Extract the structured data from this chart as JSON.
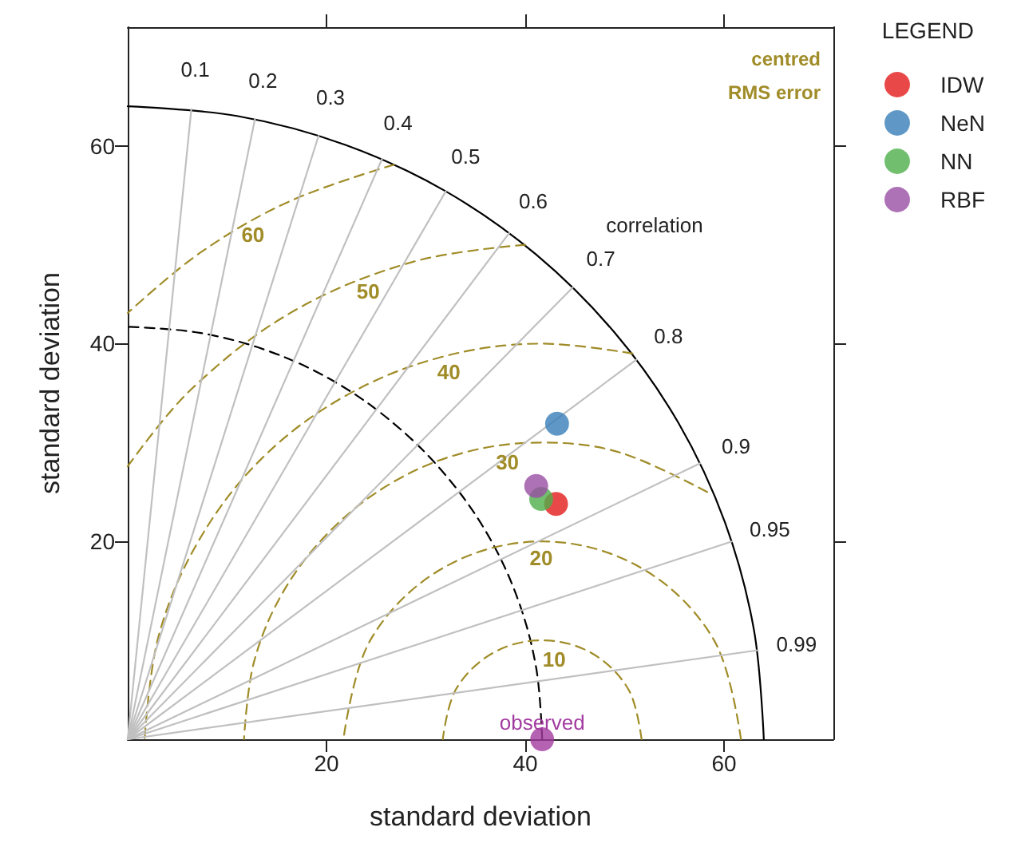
{
  "chart_data": {
    "type": "scatter",
    "xlabel": "standard deviation",
    "ylabel": "standard deviation",
    "legend_title": "LEGEND",
    "legend": "right",
    "grid": false,
    "marker": "circle",
    "xlim": [
      0,
      71
    ],
    "ylim": [
      0,
      72
    ],
    "xticks": [
      20,
      40,
      60
    ],
    "yticks": [
      20,
      40,
      60
    ],
    "series": [
      {
        "type": "line",
        "marker": "none",
        "color": "#000000",
        "line_style": "solid",
        "x": [
          64,
          63,
          60.1,
          55.4,
          49,
          41.1,
          32,
          21.9,
          11.1,
          0
        ],
        "values": [
          0,
          11.1,
          21.9,
          32,
          41.1,
          49,
          55.4,
          60.1,
          63,
          64
        ]
      },
      {
        "type": "line",
        "marker": "none",
        "color": "#000000",
        "line_style": "dashed",
        "x": [
          41.7,
          41.1,
          39.2,
          36.1,
          31.9,
          26.8,
          20.9,
          14.3,
          7.2,
          0
        ],
        "values": [
          0,
          7.2,
          14.3,
          20.9,
          26.8,
          31.9,
          36.1,
          39.2,
          41.1,
          41.7
        ]
      },
      {
        "type": "line",
        "marker": "none",
        "color": "#a08c28",
        "line_style": "dashed",
        "x": [
          51.7,
          50.4,
          46.7,
          41.7,
          36.7,
          33,
          31.7
        ],
        "values": [
          0,
          5,
          8.7,
          10,
          8.7,
          5,
          0
        ]
      },
      {
        "type": "line",
        "marker": "none",
        "color": "#a08c28",
        "line_style": "dashed",
        "x": [
          61.7,
          59,
          51.7,
          41.7,
          31.7,
          24.4,
          21.7
        ],
        "values": [
          0,
          10,
          17.3,
          20,
          17.3,
          10,
          0
        ]
      },
      {
        "type": "line",
        "marker": "none",
        "color": "#a08c28",
        "line_style": "dashed",
        "x": [
          58.3,
          49.5,
          41.7,
          33.9,
          26.7,
          20.5,
          15.7,
          12.7,
          11.7
        ],
        "values": [
          25,
          29,
          30,
          29,
          26,
          21.2,
          15,
          7.8,
          0
        ]
      },
      {
        "type": "line",
        "marker": "none",
        "color": "#a08c28",
        "line_style": "dashed",
        "x": [
          50.8,
          41.7,
          31.4,
          21.7,
          13.4,
          7.1,
          3.1,
          1.7
        ],
        "values": [
          39,
          40,
          38.6,
          34.6,
          28.3,
          20,
          10.4,
          0
        ]
      },
      {
        "type": "line",
        "marker": "none",
        "color": "#a08c28",
        "line_style": "dashed",
        "x": [
          40,
          28.8,
          16.7,
          6.4,
          0
        ],
        "values": [
          50,
          48.3,
          43.3,
          35.4,
          27.6
        ]
      },
      {
        "type": "line",
        "marker": "none",
        "color": "#a08c28",
        "line_style": "dashed",
        "x": [
          26.8,
          16.3,
          7.3,
          0
        ],
        "values": [
          58.1,
          54.4,
          49.2,
          43.1
        ]
      },
      {
        "type": "line",
        "marker": "none",
        "color": "#c0c0c0",
        "line_style": "solid",
        "x": [
          0,
          6.4
        ],
        "values": [
          0,
          63.7
        ]
      },
      {
        "type": "line",
        "marker": "none",
        "color": "#c0c0c0",
        "line_style": "solid",
        "x": [
          0,
          12.8
        ],
        "values": [
          0,
          62.7
        ]
      },
      {
        "type": "line",
        "marker": "none",
        "color": "#c0c0c0",
        "line_style": "solid",
        "x": [
          0,
          19.2
        ],
        "values": [
          0,
          61
        ]
      },
      {
        "type": "line",
        "marker": "none",
        "color": "#c0c0c0",
        "line_style": "solid",
        "x": [
          0,
          25.6
        ],
        "values": [
          0,
          58.7
        ]
      },
      {
        "type": "line",
        "marker": "none",
        "color": "#c0c0c0",
        "line_style": "solid",
        "x": [
          0,
          32
        ],
        "values": [
          0,
          55.4
        ]
      },
      {
        "type": "line",
        "marker": "none",
        "color": "#c0c0c0",
        "line_style": "solid",
        "x": [
          0,
          38.4
        ],
        "values": [
          0,
          51.2
        ]
      },
      {
        "type": "line",
        "marker": "none",
        "color": "#c0c0c0",
        "line_style": "solid",
        "x": [
          0,
          44.8
        ],
        "values": [
          0,
          45.7
        ]
      },
      {
        "type": "line",
        "marker": "none",
        "color": "#c0c0c0",
        "line_style": "solid",
        "x": [
          0,
          51.2
        ],
        "values": [
          0,
          38.4
        ]
      },
      {
        "type": "line",
        "marker": "none",
        "color": "#c0c0c0",
        "line_style": "solid",
        "x": [
          0,
          57.6
        ],
        "values": [
          0,
          27.9
        ]
      },
      {
        "type": "line",
        "marker": "none",
        "color": "#c0c0c0",
        "line_style": "solid",
        "x": [
          0,
          60.8
        ],
        "values": [
          0,
          20
        ]
      },
      {
        "type": "line",
        "marker": "none",
        "color": "#c0c0c0",
        "line_style": "solid",
        "x": [
          0,
          63.4
        ],
        "values": [
          0,
          9
        ]
      },
      {
        "type": "scatter",
        "color": "#a23ba0",
        "x": [
          41.7
        ],
        "values": [
          0
        ]
      },
      {
        "name": "IDW",
        "color": "#e41a1c",
        "x": [
          43.1
        ],
        "values": [
          23.8
        ]
      },
      {
        "name": "NeN",
        "color": "#377eb8",
        "x": [
          43.2
        ],
        "values": [
          31.9
        ]
      },
      {
        "name": "NN",
        "color": "#4daf4a",
        "x": [
          41.6
        ],
        "values": [
          24.3
        ]
      },
      {
        "name": "RBF",
        "color": "#984ea3",
        "x": [
          41.1
        ],
        "values": [
          25.6
        ]
      }
    ],
    "annotations": [
      "centred",
      "RMS error",
      {
        "text": "observed",
        "x": 41.7,
        "y": 0
      },
      "10",
      "20",
      "30",
      "40",
      "50",
      "60",
      "0.1",
      "0.2",
      "0.3",
      "0.4",
      "0.5",
      "0.6",
      "0.7",
      "0.8",
      "0.9",
      "0.95",
      "0.99",
      "correlation"
    ]
  }
}
